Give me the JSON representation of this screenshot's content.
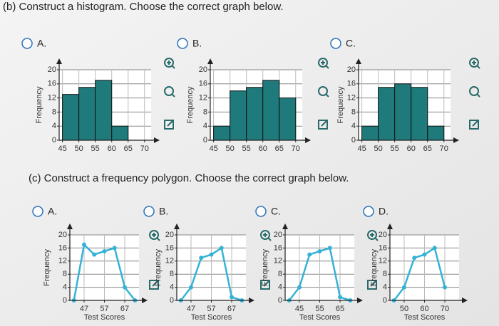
{
  "questions": [
    {
      "prompt": "(b) Construct a histogram. Choose the correct graph below.",
      "options": [
        "A.",
        "B.",
        "C."
      ]
    },
    {
      "prompt": "(c) Construct a frequency polygon. Choose the correct graph below.",
      "options": [
        "A.",
        "B.",
        "C.",
        "D."
      ]
    }
  ],
  "chart_data": [
    {
      "type": "histogram",
      "ylabel": "Frequency",
      "bins": [
        45,
        50,
        55,
        60,
        65
      ],
      "values": [
        13,
        15,
        17,
        4
      ],
      "color": "#1f7b7b",
      "xlim": [
        44,
        72
      ],
      "xticks": [
        45,
        50,
        55,
        60,
        65,
        70
      ],
      "ylim": [
        0,
        20
      ],
      "yticks": [
        0,
        4,
        8,
        12,
        16,
        20
      ],
      "grid": true
    },
    {
      "type": "histogram",
      "ylabel": "Frequency",
      "bins": [
        45,
        50,
        55,
        60,
        65,
        70
      ],
      "values": [
        4,
        14,
        15,
        17,
        12
      ],
      "color": "#1f7b7b",
      "xlim": [
        44,
        72
      ],
      "xticks": [
        45,
        50,
        55,
        60,
        65,
        70
      ],
      "ylim": [
        0,
        20
      ],
      "yticks": [
        0,
        4,
        8,
        12,
        16,
        20
      ],
      "grid": true
    },
    {
      "type": "histogram",
      "ylabel": "Frequency",
      "bins": [
        45,
        50,
        55,
        60,
        65,
        70
      ],
      "values": [
        4,
        15,
        16,
        15,
        4
      ],
      "color": "#1f7b7b",
      "xlim": [
        44,
        72
      ],
      "xticks": [
        45,
        50,
        55,
        60,
        65,
        70
      ],
      "ylim": [
        0,
        20
      ],
      "yticks": [
        0,
        4,
        8,
        12,
        16,
        20
      ],
      "grid": true
    },
    {
      "type": "line",
      "ylabel": "Frequency",
      "xlabel": "Test Scores",
      "x": [
        42,
        47,
        52,
        57,
        62,
        67,
        72
      ],
      "values": [
        0,
        17,
        14,
        15,
        16,
        4,
        0
      ],
      "color": "#35b3d6",
      "xlim": [
        40,
        74
      ],
      "xticks": [
        47,
        57,
        67
      ],
      "ylim": [
        0,
        20
      ],
      "yticks": [
        0,
        4,
        8,
        12,
        16,
        20
      ],
      "grid": true
    },
    {
      "type": "line",
      "ylabel": "Frequency",
      "xlabel": "Test Scores",
      "x": [
        42,
        47,
        52,
        57,
        62,
        67,
        72
      ],
      "values": [
        0,
        4,
        13,
        14,
        16,
        1,
        0
      ],
      "color": "#35b3d6",
      "xlim": [
        40,
        74
      ],
      "xticks": [
        47,
        57,
        67
      ],
      "ylim": [
        0,
        20
      ],
      "yticks": [
        0,
        4,
        8,
        12,
        16,
        20
      ],
      "grid": true
    },
    {
      "type": "line",
      "ylabel": "Frequency",
      "xlabel": "Test Scores",
      "x": [
        40,
        45,
        50,
        55,
        60,
        65,
        70
      ],
      "values": [
        0,
        4,
        14,
        15,
        16,
        1,
        0
      ],
      "color": "#35b3d6",
      "xlim": [
        38,
        72
      ],
      "xticks": [
        45,
        55,
        65
      ],
      "ylim": [
        0,
        20
      ],
      "yticks": [
        0,
        4,
        8,
        12,
        16,
        20
      ],
      "grid": true
    },
    {
      "type": "line",
      "ylabel": "Frequency",
      "xlabel": "Test Scores",
      "x": [
        45,
        50,
        55,
        60,
        65,
        70
      ],
      "values": [
        0,
        4,
        13,
        14,
        16,
        4
      ],
      "color": "#35b3d6",
      "xlim": [
        43,
        77
      ],
      "xticks": [
        50,
        60,
        70
      ],
      "ylim": [
        0,
        20
      ],
      "yticks": [
        0,
        4,
        8,
        12,
        16,
        20
      ],
      "grid": true
    }
  ]
}
